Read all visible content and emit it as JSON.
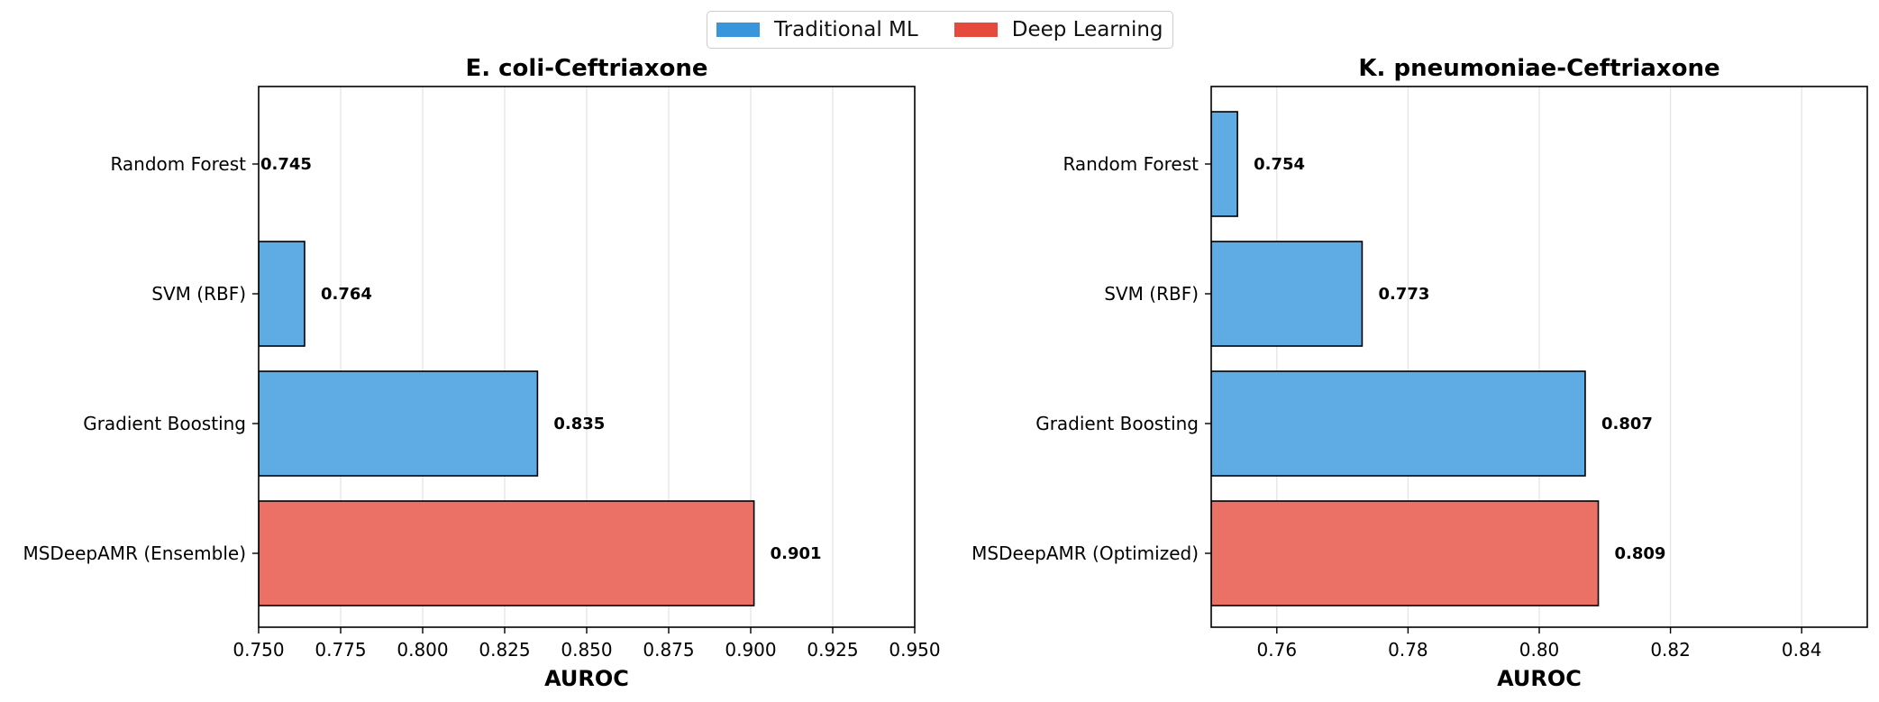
{
  "legend": {
    "items": [
      {
        "label": "Traditional ML",
        "color": "#3a96db"
      },
      {
        "label": "Deep Learning",
        "color": "#e64a3c"
      }
    ]
  },
  "chart_data": [
    {
      "type": "bar",
      "orientation": "horizontal",
      "title": "E. coli-Ceftriaxone",
      "xlabel": "AUROC",
      "ylabel": "",
      "xlim": [
        0.75,
        0.95
      ],
      "xticks": [
        "0.750",
        "0.775",
        "0.800",
        "0.825",
        "0.850",
        "0.875",
        "0.900",
        "0.925",
        "0.950"
      ],
      "grid": "vertical",
      "categories": [
        "Random Forest",
        "SVM (RBF)",
        "Gradient Boosting",
        "MSDeepAMR (Ensemble)"
      ],
      "values": [
        0.745,
        0.764,
        0.835,
        0.901
      ],
      "value_labels": [
        "0.745",
        "0.764",
        "0.835",
        "0.901"
      ],
      "groups": [
        "Traditional ML",
        "Traditional ML",
        "Traditional ML",
        "Deep Learning"
      ]
    },
    {
      "type": "bar",
      "orientation": "horizontal",
      "title": "K. pneumoniae-Ceftriaxone",
      "xlabel": "AUROC",
      "ylabel": "",
      "xlim": [
        0.75,
        0.85
      ],
      "xticks": [
        "0.76",
        "0.78",
        "0.80",
        "0.82",
        "0.84"
      ],
      "grid": "vertical",
      "categories": [
        "Random Forest",
        "SVM (RBF)",
        "Gradient Boosting",
        "MSDeepAMR (Optimized)"
      ],
      "values": [
        0.754,
        0.773,
        0.807,
        0.809
      ],
      "value_labels": [
        "0.754",
        "0.773",
        "0.807",
        "0.809"
      ],
      "groups": [
        "Traditional ML",
        "Traditional ML",
        "Traditional ML",
        "Deep Learning"
      ]
    }
  ]
}
